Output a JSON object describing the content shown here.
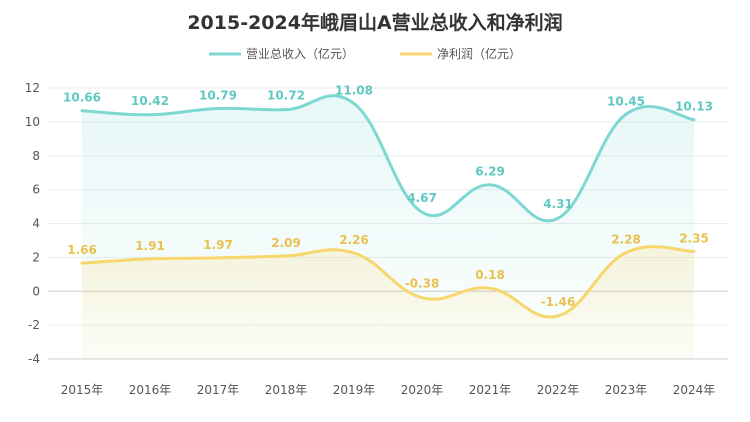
{
  "chart_data": {
    "type": "line",
    "title": "2015-2024年峨眉山A营业总收入和净利润",
    "categories": [
      "2015年",
      "2016年",
      "2017年",
      "2018年",
      "2019年",
      "2020年",
      "2021年",
      "2022年",
      "2023年",
      "2024年"
    ],
    "series": [
      {
        "name": "营业总收入（亿元）",
        "color": "#7dd8d2",
        "values": [
          10.66,
          10.42,
          10.79,
          10.72,
          11.08,
          4.67,
          6.29,
          4.31,
          10.45,
          10.13
        ],
        "labels": [
          "10.66",
          "10.42",
          "10.79",
          "10.72",
          "11.08",
          "4.67",
          "6.29",
          "4.31",
          "10.45",
          "10.13"
        ]
      },
      {
        "name": "净利润（亿元）",
        "color": "#f7d66e",
        "values": [
          1.66,
          1.91,
          1.97,
          2.09,
          2.26,
          -0.38,
          0.18,
          -1.46,
          2.28,
          2.35
        ],
        "labels": [
          "1.66",
          "1.91",
          "1.97",
          "2.09",
          "2.26",
          "-0.38",
          "0.18",
          "-1.46",
          "2.28",
          "2.35"
        ]
      }
    ],
    "yticks": [
      "-4",
      "-2",
      "0",
      "2",
      "4",
      "6",
      "8",
      "10",
      "12"
    ],
    "ylim": [
      -4,
      12
    ],
    "grid": true,
    "legend_position": "top-center",
    "smooth": true,
    "area_fill": true
  }
}
